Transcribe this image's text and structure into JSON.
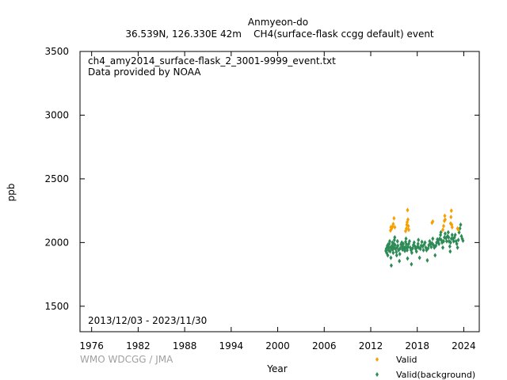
{
  "chart_data": {
    "type": "scatter",
    "title": "Anmyeon-do",
    "subtitle": "36.539N, 126.330E 42m    CH4(surface-flask ccgg default) event",
    "annotations": [
      "ch4_amy2014_surface-flask_2_3001-9999_event.txt",
      "Data provided by NOAA"
    ],
    "date_range": "2013/12/03 - 2023/11/30",
    "xlabel": "Year",
    "ylabel": "ppb",
    "credit": "WMO WDCGG / JMA",
    "xlim": [
      1974.5,
      2026.0
    ],
    "ylim": [
      1300,
      3500
    ],
    "x_ticks": [
      1976,
      1982,
      1988,
      1994,
      2000,
      2006,
      2012,
      2018,
      2024
    ],
    "y_ticks": [
      1500,
      2000,
      2500,
      3000,
      3500
    ],
    "grid": false,
    "legend_position": "bottom-right",
    "series": [
      {
        "name": "Valid",
        "color": "#f5a000",
        "marker": "diamond",
        "points": [
          [
            2014.55,
            2095
          ],
          [
            2014.6,
            2120
          ],
          [
            2014.7,
            2110
          ],
          [
            2014.8,
            2125
          ],
          [
            2014.9,
            2145
          ],
          [
            2015.0,
            2190
          ],
          [
            2015.1,
            2120
          ],
          [
            2016.5,
            2090
          ],
          [
            2016.6,
            2110
          ],
          [
            2016.65,
            2140
          ],
          [
            2016.7,
            2160
          ],
          [
            2016.75,
            2255
          ],
          [
            2016.8,
            2180
          ],
          [
            2016.85,
            2130
          ],
          [
            2016.9,
            2100
          ],
          [
            2019.9,
            2155
          ],
          [
            2020.0,
            2165
          ],
          [
            2021.3,
            2100
          ],
          [
            2021.4,
            2130
          ],
          [
            2021.5,
            2170
          ],
          [
            2021.55,
            2210
          ],
          [
            2021.6,
            2180
          ],
          [
            2022.3,
            2150
          ],
          [
            2022.35,
            2200
          ],
          [
            2022.4,
            2250
          ],
          [
            2022.45,
            2140
          ],
          [
            2022.5,
            2120
          ],
          [
            2023.2,
            2110
          ],
          [
            2023.3,
            2100
          ]
        ]
      },
      {
        "name": "Valid(background)",
        "color": "#2e8b57",
        "marker": "diamond",
        "points": [
          [
            2013.95,
            1935
          ],
          [
            2014.0,
            1950
          ],
          [
            2014.05,
            1920
          ],
          [
            2014.1,
            1960
          ],
          [
            2014.15,
            1975
          ],
          [
            2014.2,
            1900
          ],
          [
            2014.25,
            1985
          ],
          [
            2014.3,
            1940
          ],
          [
            2014.35,
            1960
          ],
          [
            2014.4,
            1990
          ],
          [
            2014.45,
            2010
          ],
          [
            2014.5,
            1930
          ],
          [
            2014.55,
            1960
          ],
          [
            2014.6,
            1880
          ],
          [
            2014.65,
            1820
          ],
          [
            2014.7,
            1950
          ],
          [
            2014.75,
            1975
          ],
          [
            2014.8,
            2000
          ],
          [
            2014.85,
            1945
          ],
          [
            2014.9,
            1920
          ],
          [
            2014.95,
            1960
          ],
          [
            2015.0,
            1990
          ],
          [
            2015.05,
            2020
          ],
          [
            2015.1,
            2040
          ],
          [
            2015.15,
            1980
          ],
          [
            2015.2,
            1950
          ],
          [
            2015.3,
            1925
          ],
          [
            2015.35,
            1900
          ],
          [
            2015.4,
            1960
          ],
          [
            2015.45,
            2010
          ],
          [
            2015.5,
            1975
          ],
          [
            2015.6,
            1940
          ],
          [
            2015.7,
            1855
          ],
          [
            2015.75,
            1910
          ],
          [
            2015.8,
            1955
          ],
          [
            2015.9,
            1985
          ],
          [
            2016.0,
            2000
          ],
          [
            2016.05,
            1970
          ],
          [
            2016.1,
            1945
          ],
          [
            2016.2,
            1990
          ],
          [
            2016.3,
            1960
          ],
          [
            2016.4,
            1935
          ],
          [
            2016.45,
            1960
          ],
          [
            2016.5,
            2005
          ],
          [
            2016.55,
            2030
          ],
          [
            2016.6,
            1985
          ],
          [
            2016.65,
            1955
          ],
          [
            2016.7,
            1940
          ],
          [
            2016.75,
            1875
          ],
          [
            2016.8,
            1965
          ],
          [
            2016.9,
            1990
          ],
          [
            2017.0,
            2010
          ],
          [
            2017.1,
            1960
          ],
          [
            2017.2,
            1940
          ],
          [
            2017.25,
            1830
          ],
          [
            2017.3,
            1920
          ],
          [
            2017.4,
            1955
          ],
          [
            2017.5,
            1980
          ],
          [
            2017.6,
            2000
          ],
          [
            2017.7,
            1970
          ],
          [
            2017.8,
            1950
          ],
          [
            2017.9,
            1930
          ],
          [
            2018.0,
            1965
          ],
          [
            2018.1,
            1990
          ],
          [
            2018.15,
            2020
          ],
          [
            2018.2,
            1960
          ],
          [
            2018.3,
            1880
          ],
          [
            2018.4,
            1950
          ],
          [
            2018.5,
            1975
          ],
          [
            2018.6,
            2005
          ],
          [
            2018.7,
            1970
          ],
          [
            2018.8,
            1940
          ],
          [
            2018.9,
            1985
          ],
          [
            2019.0,
            2000
          ],
          [
            2019.1,
            1960
          ],
          [
            2019.2,
            1940
          ],
          [
            2019.3,
            1860
          ],
          [
            2019.4,
            1955
          ],
          [
            2019.5,
            1980
          ],
          [
            2019.6,
            2010
          ],
          [
            2019.7,
            1990
          ],
          [
            2019.8,
            1965
          ],
          [
            2019.9,
            1995
          ],
          [
            2020.0,
            2030
          ],
          [
            2020.1,
            1980
          ],
          [
            2020.2,
            1960
          ],
          [
            2020.3,
            1900
          ],
          [
            2020.4,
            1975
          ],
          [
            2020.5,
            2000
          ],
          [
            2020.6,
            2025
          ],
          [
            2020.7,
            2010
          ],
          [
            2020.8,
            1990
          ],
          [
            2020.9,
            2030
          ],
          [
            2021.0,
            2060
          ],
          [
            2021.05,
            2080
          ],
          [
            2021.1,
            2020
          ],
          [
            2021.2,
            2000
          ],
          [
            2021.3,
            1960
          ],
          [
            2021.4,
            2010
          ],
          [
            2021.5,
            2040
          ],
          [
            2021.6,
            2070
          ],
          [
            2021.7,
            2035
          ],
          [
            2021.8,
            2010
          ],
          [
            2021.9,
            2050
          ],
          [
            2022.0,
            2080
          ],
          [
            2022.05,
            2040
          ],
          [
            2022.1,
            2010
          ],
          [
            2022.2,
            1970
          ],
          [
            2022.25,
            1930
          ],
          [
            2022.3,
            2000
          ],
          [
            2022.4,
            2030
          ],
          [
            2022.5,
            2060
          ],
          [
            2022.6,
            2030
          ],
          [
            2022.7,
            2010
          ],
          [
            2022.8,
            2040
          ],
          [
            2022.9,
            2060
          ],
          [
            2023.0,
            2010
          ],
          [
            2023.1,
            1990
          ],
          [
            2023.2,
            1960
          ],
          [
            2023.3,
            2020
          ],
          [
            2023.4,
            2080
          ],
          [
            2023.5,
            2110
          ],
          [
            2023.6,
            2140
          ],
          [
            2023.7,
            2050
          ],
          [
            2023.8,
            2030
          ],
          [
            2023.9,
            2015
          ]
        ]
      }
    ]
  }
}
